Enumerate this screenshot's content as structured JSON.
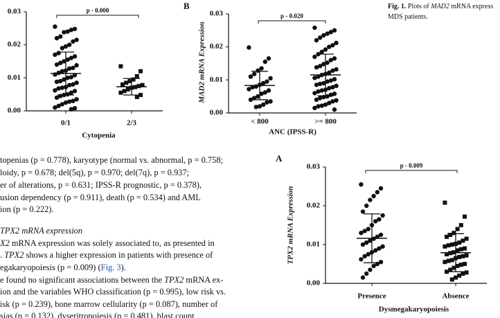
{
  "chart_data": [
    {
      "type": "scatter",
      "annotation": "p - 0.000",
      "xlabel": "Cytopenia",
      "categories": [
        "0/1",
        "2/3"
      ],
      "ylim": [
        0,
        0.03
      ],
      "yticks": [
        {
          "value": 0,
          "label": "0.00"
        },
        0.01,
        0.02,
        0.03
      ],
      "series": [
        {
          "color": "#111",
          "marker": "circle",
          "mean": 0.0113,
          "sd": 0.0065,
          "values": [
            0.0255,
            0.0248,
            0.0245,
            0.024,
            0.0238,
            0.0225,
            0.022,
            0.0215,
            0.021,
            0.02,
            0.0195,
            0.019,
            0.0175,
            0.017,
            0.0165,
            0.016,
            0.0155,
            0.015,
            0.0145,
            0.014,
            0.0138,
            0.013,
            0.0128,
            0.0122,
            0.012,
            0.0115,
            0.011,
            0.0108,
            0.0102,
            0.01,
            0.0095,
            0.009,
            0.0088,
            0.0085,
            0.008,
            0.0078,
            0.0072,
            0.007,
            0.0068,
            0.0062,
            0.006,
            0.0055,
            0.005,
            0.0048,
            0.0045,
            0.004,
            0.0035,
            0.003,
            0.0028,
            0.0025,
            0.002,
            0.0015,
            0.001,
            0.0008,
            0.0005
          ]
        },
        {
          "color": "#111",
          "marker": "square",
          "mean": 0.0073,
          "sd": 0.0025,
          "values": [
            0.0135,
            0.012,
            0.0105,
            0.0095,
            0.009,
            0.0085,
            0.008,
            0.0078,
            0.0075,
            0.0072,
            0.007,
            0.0065,
            0.006,
            0.0055,
            0.0048,
            0.0042
          ]
        }
      ]
    },
    {
      "type": "scatter",
      "panel_label": "B",
      "annotation": "p - 0.020",
      "xlabel": "ANC (IPSS-R)",
      "ylabel": "MAD2 mRNA Expression",
      "categories": [
        "< 800",
        ">= 800"
      ],
      "ylim": [
        0,
        0.03
      ],
      "yticks": [
        {
          "value": 0,
          "label": "0.00"
        },
        0.01,
        0.02,
        0.03
      ],
      "series": [
        {
          "color": "#111",
          "marker": "circle",
          "mean": 0.0083,
          "sd": 0.0043,
          "values": [
            0.0198,
            0.0165,
            0.0155,
            0.0135,
            0.0128,
            0.0118,
            0.011,
            0.0105,
            0.0095,
            0.009,
            0.0085,
            0.008,
            0.0078,
            0.0072,
            0.0068,
            0.0062,
            0.0058,
            0.005,
            0.0045,
            0.004,
            0.0035,
            0.0032,
            0.0025,
            0.002,
            0.0018
          ]
        },
        {
          "color": "#111",
          "marker": "circle",
          "mean": 0.0115,
          "sd": 0.0063,
          "values": [
            0.0258,
            0.025,
            0.0245,
            0.024,
            0.0235,
            0.0228,
            0.022,
            0.0212,
            0.0205,
            0.02,
            0.0192,
            0.0185,
            0.0178,
            0.017,
            0.0165,
            0.016,
            0.0152,
            0.0148,
            0.0142,
            0.0138,
            0.0132,
            0.0128,
            0.0122,
            0.0118,
            0.0115,
            0.011,
            0.0106,
            0.0102,
            0.0098,
            0.0095,
            0.009,
            0.0088,
            0.0085,
            0.0082,
            0.0078,
            0.0075,
            0.007,
            0.0068,
            0.0065,
            0.006,
            0.0058,
            0.0055,
            0.005,
            0.0048,
            0.0045,
            0.004,
            0.0038,
            0.0035,
            0.003,
            0.0025,
            0.0022,
            0.002,
            0.0015,
            0.001
          ]
        }
      ]
    },
    {
      "type": "scatter",
      "panel_label": "A",
      "annotation": "p - 0.009",
      "xlabel": "Dysmegakaryopoiesis",
      "ylabel": "TPX2 mRNA Expression",
      "categories": [
        "Presence",
        "Absence"
      ],
      "ylim": [
        0,
        0.03
      ],
      "yticks": [
        {
          "value": 0,
          "label": "0.00"
        },
        0.01,
        0.02,
        0.03
      ],
      "series": [
        {
          "color": "#111",
          "marker": "circle",
          "mean": 0.0116,
          "sd": 0.0063,
          "values": [
            0.0255,
            0.0245,
            0.0235,
            0.0225,
            0.0215,
            0.02,
            0.0185,
            0.0175,
            0.0165,
            0.016,
            0.015,
            0.014,
            0.0135,
            0.013,
            0.0125,
            0.012,
            0.0115,
            0.011,
            0.0105,
            0.01,
            0.0095,
            0.009,
            0.0085,
            0.008,
            0.0075,
            0.007,
            0.0062,
            0.0055,
            0.005,
            0.0045,
            0.0035,
            0.0025,
            0.0015
          ]
        },
        {
          "color": "#111",
          "marker": "square",
          "mean": 0.0079,
          "sd": 0.0049,
          "values": [
            0.0208,
            0.0172,
            0.015,
            0.014,
            0.013,
            0.0125,
            0.012,
            0.0115,
            0.011,
            0.0105,
            0.0102,
            0.01,
            0.0098,
            0.0095,
            0.009,
            0.0088,
            0.0085,
            0.008,
            0.0078,
            0.0075,
            0.0072,
            0.007,
            0.0068,
            0.0065,
            0.006,
            0.0058,
            0.0055,
            0.005,
            0.0048,
            0.0045,
            0.004,
            0.0035,
            0.003,
            0.0028,
            0.0025,
            0.002,
            0.0015,
            0.001
          ]
        }
      ]
    }
  ],
  "caption": [
    [
      {
        "text": "Fig. 1.",
        "bold": true
      },
      {
        "text": " Plots of "
      },
      {
        "text": "MAD2",
        "italic": true
      },
      {
        "text": " mRNA express"
      }
    ],
    [
      {
        "text": "MDS patients."
      }
    ]
  ],
  "body": [
    [
      {
        "text": "topenias (p = 0.778), karyotype (normal vs. abnormal, p = 0.758;"
      }
    ],
    [
      {
        "text": "loidy,  p = 0.678;  del(5q),  p = 0.970;  del(7q),  p = 0.937;"
      }
    ],
    [
      {
        "text": "er  of  alterations,  p = 0.631;  IPSS-R prognostic,  p = 0.378),"
      }
    ],
    [
      {
        "text": "usion dependency (p = 0.911), death (p = 0.534) and AML"
      }
    ],
    [
      {
        "text": "ion (p = 0.222)."
      }
    ],
    [
      {
        "text": "TPX2 mRNA expression",
        "italic": true
      }
    ],
    [
      {
        "text": "X2",
        "italic": true
      },
      {
        "text": " mRNA expression was solely associated to, as presented in"
      }
    ],
    [
      {
        "text": ". "
      },
      {
        "text": "TPX2",
        "italic": true
      },
      {
        "text": " shows a higher expression in patients with presence of"
      }
    ],
    [
      {
        "text": "egakaryopoiesis (p = 0.009) ("
      },
      {
        "text": "Fig. 3",
        "link": true
      },
      {
        "text": ")."
      }
    ],
    [
      {
        "text": "e found no significant associations between the "
      },
      {
        "text": "TPX2",
        "italic": true
      },
      {
        "text": " mRNA ex-"
      }
    ],
    [
      {
        "text": "ion and the variables WHO classification (p = 0.995), low risk vs."
      }
    ],
    [
      {
        "text": "isk (p = 0.239), bone marrow cellularity (p = 0.087), number of"
      }
    ],
    [
      {
        "text": "sias  (p = 0.132),  dyseritropoiesis  (p = 0.481),  blast  count"
      }
    ]
  ]
}
